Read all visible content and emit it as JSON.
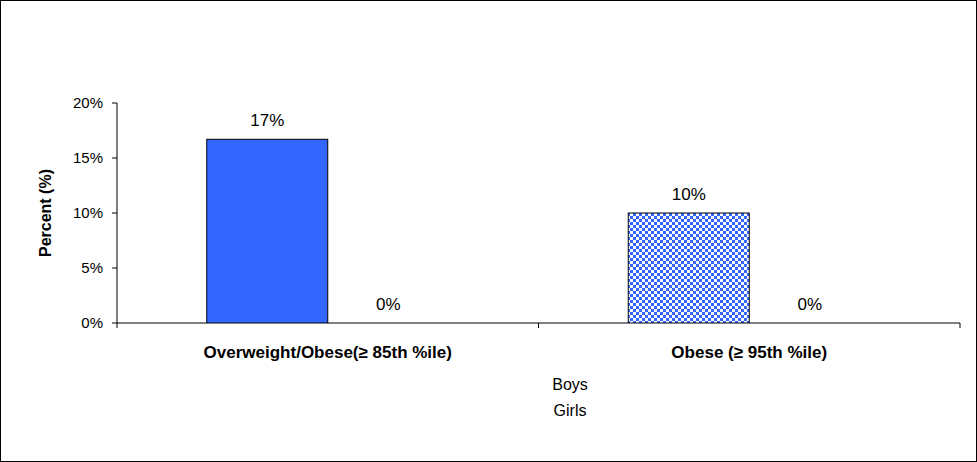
{
  "chart_data": {
    "type": "bar",
    "categories": [
      "Overweight/Obese(≥ 85th %ile)",
      "Obese (≥ 95th %ile)"
    ],
    "series": [
      {
        "name": "Boys",
        "colors": [
          "#3366ff",
          "#3366ff"
        ],
        "values": [
          16.7,
          10
        ],
        "value_labels": [
          "17%",
          "10%"
        ]
      },
      {
        "name": "Girls",
        "values": [
          0,
          0
        ],
        "value_labels": [
          "0%",
          "0%"
        ]
      }
    ],
    "y_label": "Percent (%)",
    "ylim": [
      0,
      20
    ],
    "yticks": [
      {
        "value": 0,
        "label": "0%"
      },
      {
        "value": 5,
        "label": "5%"
      },
      {
        "value": 10,
        "label": "10%"
      },
      {
        "value": 15,
        "label": "15%"
      },
      {
        "value": 20,
        "label": "20%"
      }
    ],
    "data_labels": true,
    "legend": "bottom",
    "grid": false
  }
}
